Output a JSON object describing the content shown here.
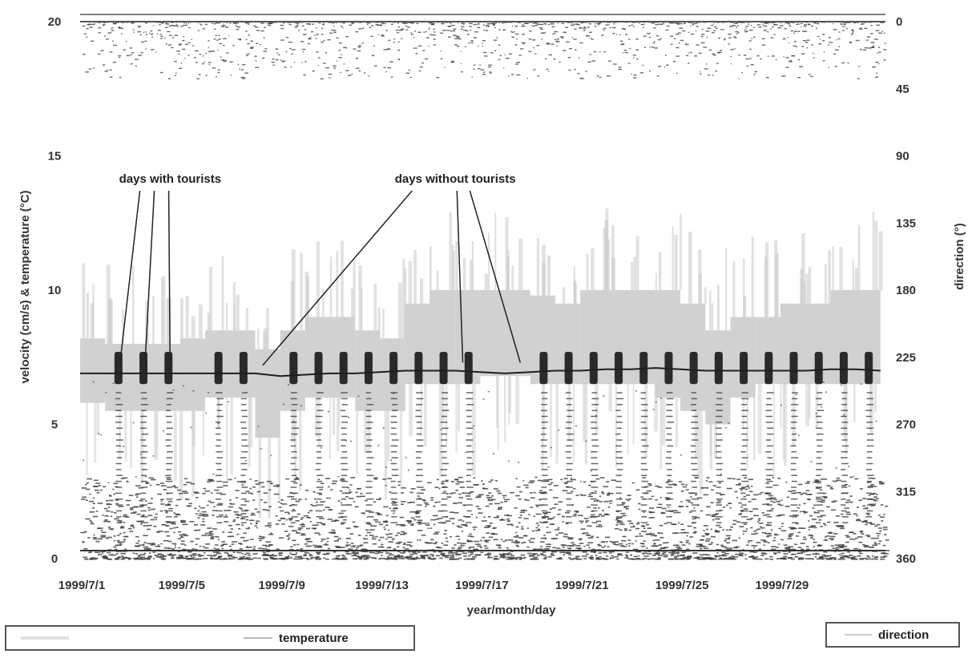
{
  "colors": {
    "velocity": "#c9c9c9",
    "temperature": "#1e1e1e",
    "direction": "#3a3a3a",
    "axis_text": "#333333"
  },
  "chart_data": {
    "type": "line",
    "xlabel": "year/month/day",
    "ylabel": "velocity (cm/s) & temperature (°C)",
    "y2label": "direction (°)",
    "ylim": [
      0,
      20
    ],
    "y2lim": [
      360,
      0
    ],
    "y2_inverted": true,
    "x_tick_labels": [
      "1999/7/1",
      "1999/7/5",
      "1999/7/9",
      "1999/7/13",
      "1999/7/17",
      "1999/7/21",
      "1999/7/25",
      "1999/7/29"
    ],
    "x_tick_days": [
      1,
      5,
      9,
      13,
      17,
      21,
      25,
      29
    ],
    "xlim_days": [
      1,
      33.2
    ],
    "y_ticks": [
      "0",
      "5",
      "10",
      "15",
      "20"
    ],
    "y_tick_values": [
      0,
      5,
      10,
      15,
      20
    ],
    "y2_ticks": [
      "0",
      "45",
      "90",
      "135",
      "180",
      "225",
      "270",
      "315",
      "360"
    ],
    "y2_tick_values": [
      0,
      45,
      90,
      135,
      180,
      225,
      270,
      315,
      360
    ],
    "grid": false,
    "annotations": [
      {
        "text": "days with tourists",
        "x_day": 4.6,
        "y": 14.0,
        "targets": [
          [
            2.5,
            7.0
          ],
          [
            3.5,
            7.0
          ],
          [
            4.5,
            7.0
          ]
        ]
      },
      {
        "text": "days without tourists",
        "x_day": 16.0,
        "y": 14.0,
        "targets": [
          [
            8.3,
            6.9
          ],
          [
            16.3,
            7.0
          ],
          [
            18.6,
            7.0
          ]
        ]
      }
    ],
    "series": [
      {
        "name": "velocity",
        "style": "band",
        "x": [
          1,
          2,
          3,
          4,
          5,
          6,
          7,
          8,
          9,
          10,
          11,
          12,
          13,
          14,
          15,
          16,
          17,
          18,
          19,
          20,
          21,
          22,
          23,
          24,
          25,
          26,
          27,
          28,
          29,
          30,
          31,
          32,
          33
        ],
        "high": [
          8.2,
          8.0,
          8.0,
          8.0,
          8.2,
          8.5,
          8.5,
          7.8,
          8.5,
          9.0,
          9.0,
          8.5,
          8.2,
          9.5,
          10.0,
          10.0,
          10.0,
          10.0,
          9.8,
          9.5,
          10.0,
          10.0,
          10.0,
          10.0,
          9.5,
          8.5,
          9.0,
          9.0,
          9.5,
          9.5,
          10.0,
          10.0,
          9.8
        ],
        "low": [
          5.8,
          5.5,
          5.5,
          5.5,
          5.5,
          6.0,
          6.0,
          4.5,
          5.5,
          6.0,
          6.0,
          5.5,
          5.5,
          6.5,
          6.5,
          6.5,
          6.8,
          6.8,
          6.5,
          6.5,
          6.5,
          6.5,
          6.5,
          6.0,
          5.5,
          5.0,
          6.0,
          6.5,
          6.5,
          6.5,
          6.5,
          6.5,
          6.5
        ]
      },
      {
        "name": "temperature",
        "style": "line",
        "x": [
          1,
          2,
          3,
          4,
          5,
          6,
          7,
          8,
          9,
          10,
          11,
          12,
          13,
          14,
          15,
          16,
          17,
          18,
          19,
          20,
          21,
          22,
          23,
          24,
          25,
          26,
          27,
          28,
          29,
          30,
          31,
          32,
          33
        ],
        "values": [
          6.9,
          6.9,
          6.9,
          6.9,
          6.9,
          6.9,
          6.9,
          6.9,
          6.8,
          6.85,
          6.9,
          6.9,
          6.95,
          7.0,
          7.0,
          7.0,
          6.95,
          6.9,
          6.95,
          7.0,
          7.0,
          7.05,
          7.05,
          7.1,
          7.05,
          7.0,
          7.0,
          7.0,
          7.0,
          7.0,
          7.05,
          7.05,
          7.0
        ]
      },
      {
        "name": "direction",
        "style": "scatter",
        "note_ranges_deg": [
          [
            0,
            40
          ],
          [
            290,
            360
          ]
        ]
      }
    ],
    "legend": [
      {
        "label": "temperature",
        "placement": "bottom-left"
      },
      {
        "label": "direction",
        "placement": "bottom-right"
      }
    ]
  }
}
